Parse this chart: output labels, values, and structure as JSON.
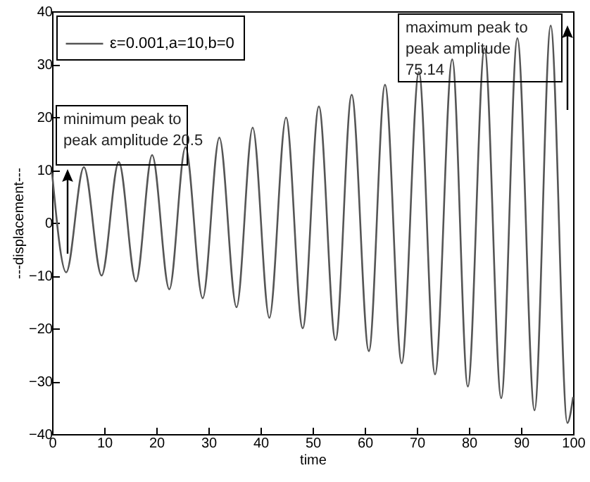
{
  "chart_data": {
    "type": "line",
    "xlabel": "time",
    "ylabel": "---displacement---",
    "x": [
      0,
      2.7,
      6.1,
      9.5,
      12.8,
      16.1,
      19.2,
      22.5,
      25.6,
      28.9,
      32.1,
      35.4,
      38.5,
      41.7,
      44.9,
      48.1,
      51.2,
      54.4,
      57.5,
      60.8,
      63.9,
      67.1,
      70.4,
      73.5,
      76.8,
      79.8,
      83,
      86.2,
      89.3,
      92.6,
      95.7,
      98.9,
      100
    ],
    "series": [
      {
        "name": "ε=0.001,a=10,b=0",
        "color": "#555555",
        "values": [
          9.4,
          -9.4,
          10.5,
          -10,
          11.5,
          -11.1,
          12.8,
          -12.6,
          14.3,
          -14.3,
          16.1,
          -16,
          18,
          -18,
          19.9,
          -20,
          22,
          -22.2,
          24.2,
          -24.3,
          26.1,
          -26.6,
          28.5,
          -28.7,
          30.9,
          -31,
          33,
          -33.2,
          34.9,
          -35.5,
          37.3,
          -37.9,
          -33
        ]
      }
    ],
    "xlim": [
      0,
      100
    ],
    "xticks": [
      0,
      10,
      20,
      30,
      40,
      50,
      60,
      70,
      80,
      90,
      100
    ],
    "ylim": [
      -40,
      40
    ],
    "yticks": [
      -40,
      -30,
      -20,
      -10,
      0,
      10,
      20,
      30,
      40
    ],
    "legend": "top left",
    "grid": false,
    "marker": "none",
    "line_style": "solid",
    "annotations": [
      "minimum peak to peak amplitude 20.5",
      "maximum peak to peak amplitude 75.14"
    ]
  }
}
